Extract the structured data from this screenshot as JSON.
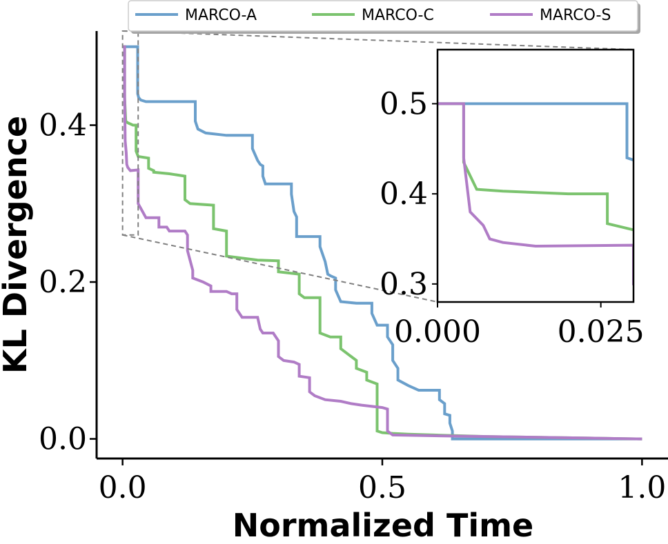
{
  "chart_data": {
    "type": "line",
    "title": "",
    "xlabel": "Normalized Time",
    "ylabel": "KL Divergence",
    "xlim": [
      -0.05,
      1.05
    ],
    "ylim": [
      -0.025,
      0.52
    ],
    "xticks": [
      0.0,
      0.5,
      1.0
    ],
    "xtick_labels": [
      "0.0",
      "0.5",
      "1.0"
    ],
    "yticks": [
      0.0,
      0.2,
      0.4
    ],
    "ytick_labels": [
      "0.0",
      "0.2",
      "0.4"
    ],
    "grid": false,
    "legend_position": "top-center",
    "series": [
      {
        "name": "MARCO-A",
        "color": "#6a9fcb",
        "points": [
          [
            0.0,
            0.5
          ],
          [
            0.029,
            0.5
          ],
          [
            0.029,
            0.44
          ],
          [
            0.031,
            0.435
          ],
          [
            0.035,
            0.432
          ],
          [
            0.045,
            0.43
          ],
          [
            0.06,
            0.43
          ],
          [
            0.1,
            0.43
          ],
          [
            0.14,
            0.43
          ],
          [
            0.14,
            0.405
          ],
          [
            0.145,
            0.395
          ],
          [
            0.16,
            0.39
          ],
          [
            0.2,
            0.387
          ],
          [
            0.25,
            0.387
          ],
          [
            0.25,
            0.37
          ],
          [
            0.26,
            0.355
          ],
          [
            0.265,
            0.35
          ],
          [
            0.27,
            0.348
          ],
          [
            0.27,
            0.335
          ],
          [
            0.275,
            0.325
          ],
          [
            0.325,
            0.325
          ],
          [
            0.325,
            0.312
          ],
          [
            0.33,
            0.29
          ],
          [
            0.335,
            0.283
          ],
          [
            0.335,
            0.258
          ],
          [
            0.38,
            0.258
          ],
          [
            0.38,
            0.245
          ],
          [
            0.39,
            0.226
          ],
          [
            0.395,
            0.21
          ],
          [
            0.4,
            0.208
          ],
          [
            0.41,
            0.205
          ],
          [
            0.41,
            0.19
          ],
          [
            0.42,
            0.175
          ],
          [
            0.45,
            0.173
          ],
          [
            0.48,
            0.173
          ],
          [
            0.48,
            0.16
          ],
          [
            0.49,
            0.145
          ],
          [
            0.51,
            0.145
          ],
          [
            0.51,
            0.13
          ],
          [
            0.52,
            0.12
          ],
          [
            0.52,
            0.1
          ],
          [
            0.53,
            0.09
          ],
          [
            0.53,
            0.075
          ],
          [
            0.55,
            0.068
          ],
          [
            0.57,
            0.062
          ],
          [
            0.61,
            0.062
          ],
          [
            0.61,
            0.05
          ],
          [
            0.62,
            0.045
          ],
          [
            0.62,
            0.032
          ],
          [
            0.63,
            0.03
          ],
          [
            0.63,
            0.02
          ],
          [
            0.635,
            0.01
          ],
          [
            0.635,
            0.0
          ],
          [
            0.7,
            0.0
          ],
          [
            0.8,
            0.0
          ],
          [
            1.0,
            0.0
          ]
        ]
      },
      {
        "name": "MARCO-C",
        "color": "#7bc36e",
        "points": [
          [
            0.0,
            0.5
          ],
          [
            0.004,
            0.5
          ],
          [
            0.004,
            0.435
          ],
          [
            0.006,
            0.405
          ],
          [
            0.01,
            0.403
          ],
          [
            0.02,
            0.4
          ],
          [
            0.026,
            0.4
          ],
          [
            0.026,
            0.367
          ],
          [
            0.03,
            0.36
          ],
          [
            0.05,
            0.358
          ],
          [
            0.05,
            0.345
          ],
          [
            0.06,
            0.342
          ],
          [
            0.06,
            0.34
          ],
          [
            0.09,
            0.338
          ],
          [
            0.12,
            0.335
          ],
          [
            0.12,
            0.305
          ],
          [
            0.13,
            0.3
          ],
          [
            0.175,
            0.298
          ],
          [
            0.175,
            0.268
          ],
          [
            0.2,
            0.265
          ],
          [
            0.2,
            0.233
          ],
          [
            0.26,
            0.228
          ],
          [
            0.3,
            0.227
          ],
          [
            0.3,
            0.213
          ],
          [
            0.34,
            0.21
          ],
          [
            0.34,
            0.185
          ],
          [
            0.35,
            0.18
          ],
          [
            0.38,
            0.18
          ],
          [
            0.38,
            0.135
          ],
          [
            0.4,
            0.13
          ],
          [
            0.42,
            0.13
          ],
          [
            0.42,
            0.115
          ],
          [
            0.45,
            0.1
          ],
          [
            0.45,
            0.09
          ],
          [
            0.47,
            0.085
          ],
          [
            0.47,
            0.075
          ],
          [
            0.49,
            0.07
          ],
          [
            0.49,
            0.01
          ],
          [
            0.5,
            0.008
          ],
          [
            0.52,
            0.007
          ],
          [
            0.55,
            0.006
          ],
          [
            0.6,
            0.005
          ],
          [
            0.7,
            0.003
          ],
          [
            0.8,
            0.002
          ],
          [
            0.9,
            0.001
          ],
          [
            1.0,
            0.0
          ]
        ]
      },
      {
        "name": "MARCO-S",
        "color": "#b07cc6",
        "points": [
          [
            0.0,
            0.5
          ],
          [
            0.004,
            0.5
          ],
          [
            0.004,
            0.44
          ],
          [
            0.005,
            0.38
          ],
          [
            0.007,
            0.365
          ],
          [
            0.008,
            0.35
          ],
          [
            0.01,
            0.346
          ],
          [
            0.015,
            0.342
          ],
          [
            0.03,
            0.343
          ],
          [
            0.03,
            0.3
          ],
          [
            0.04,
            0.288
          ],
          [
            0.045,
            0.282
          ],
          [
            0.07,
            0.282
          ],
          [
            0.07,
            0.27
          ],
          [
            0.085,
            0.27
          ],
          [
            0.09,
            0.265
          ],
          [
            0.12,
            0.265
          ],
          [
            0.125,
            0.26
          ],
          [
            0.125,
            0.24
          ],
          [
            0.135,
            0.215
          ],
          [
            0.135,
            0.205
          ],
          [
            0.155,
            0.2
          ],
          [
            0.17,
            0.195
          ],
          [
            0.17,
            0.188
          ],
          [
            0.2,
            0.188
          ],
          [
            0.21,
            0.185
          ],
          [
            0.22,
            0.185
          ],
          [
            0.22,
            0.165
          ],
          [
            0.23,
            0.155
          ],
          [
            0.26,
            0.155
          ],
          [
            0.265,
            0.14
          ],
          [
            0.27,
            0.135
          ],
          [
            0.29,
            0.135
          ],
          [
            0.3,
            0.125
          ],
          [
            0.3,
            0.105
          ],
          [
            0.31,
            0.1
          ],
          [
            0.33,
            0.098
          ],
          [
            0.34,
            0.095
          ],
          [
            0.34,
            0.08
          ],
          [
            0.36,
            0.078
          ],
          [
            0.36,
            0.06
          ],
          [
            0.37,
            0.055
          ],
          [
            0.39,
            0.05
          ],
          [
            0.42,
            0.048
          ],
          [
            0.44,
            0.045
          ],
          [
            0.46,
            0.043
          ],
          [
            0.5,
            0.04
          ],
          [
            0.51,
            0.038
          ],
          [
            0.51,
            0.01
          ],
          [
            0.52,
            0.005
          ],
          [
            0.6,
            0.004
          ],
          [
            0.7,
            0.003
          ],
          [
            0.8,
            0.002
          ],
          [
            0.9,
            0.001
          ],
          [
            1.0,
            0.0
          ]
        ]
      }
    ],
    "inset": {
      "xlim": [
        0.0,
        0.03
      ],
      "ylim": [
        0.28,
        0.56
      ],
      "xticks": [
        0.0,
        0.025
      ],
      "xtick_labels": [
        "0.000",
        "0.025"
      ],
      "yticks": [
        0.3,
        0.4,
        0.5
      ],
      "ytick_labels": [
        "0.3",
        "0.4",
        "0.5"
      ],
      "zoom_region": {
        "x": [
          0.0,
          0.03
        ],
        "y": [
          0.26,
          0.52
        ]
      }
    }
  }
}
